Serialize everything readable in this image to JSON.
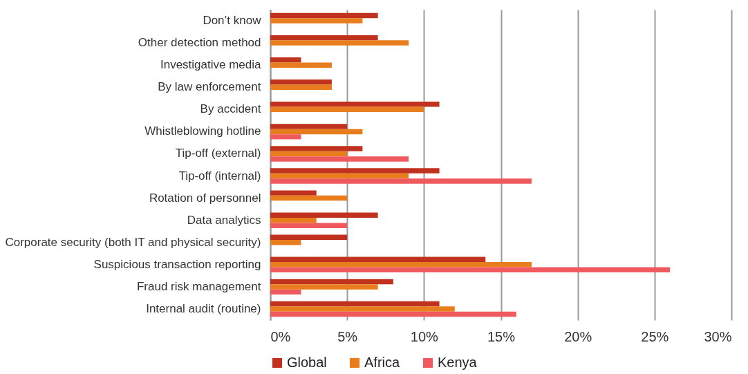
{
  "chart_data": {
    "type": "bar",
    "orientation": "horizontal",
    "categories": [
      "Don’t know",
      "Other detection method",
      "Investigative media",
      "By law enforcement",
      "By accident",
      "Whistleblowing hotline",
      "Tip-off (external)",
      "Tip-off (internal)",
      "Rotation of personnel",
      "Data analytics",
      "Corporate security (both IT and physical security)",
      "Suspicious transaction reporting",
      "Fraud risk management",
      "Internal audit (routine)"
    ],
    "series": [
      {
        "name": "Global",
        "color": "#c0311e",
        "values": [
          7,
          7,
          2,
          4,
          11,
          5,
          6,
          11,
          3,
          7,
          5,
          14,
          8,
          11
        ]
      },
      {
        "name": "Africa",
        "color": "#e87d1e",
        "values": [
          6,
          9,
          4,
          4,
          10,
          6,
          5,
          9,
          5,
          3,
          2,
          17,
          7,
          12
        ]
      },
      {
        "name": "Kenya",
        "color": "#f05a5e",
        "values": [
          null,
          null,
          null,
          null,
          null,
          2,
          9,
          17,
          null,
          5,
          null,
          26,
          2,
          16
        ]
      }
    ],
    "xlim": [
      0,
      30
    ],
    "xticks": [
      {
        "value": 0,
        "label": "0%"
      },
      {
        "value": 5,
        "label": "5%"
      },
      {
        "value": 10,
        "label": "10%"
      },
      {
        "value": 15,
        "label": "15%"
      },
      {
        "value": 20,
        "label": "20%"
      },
      {
        "value": 25,
        "label": "25%"
      },
      {
        "value": 30,
        "label": "30%"
      }
    ],
    "grid": "x",
    "legend": "bottom"
  }
}
